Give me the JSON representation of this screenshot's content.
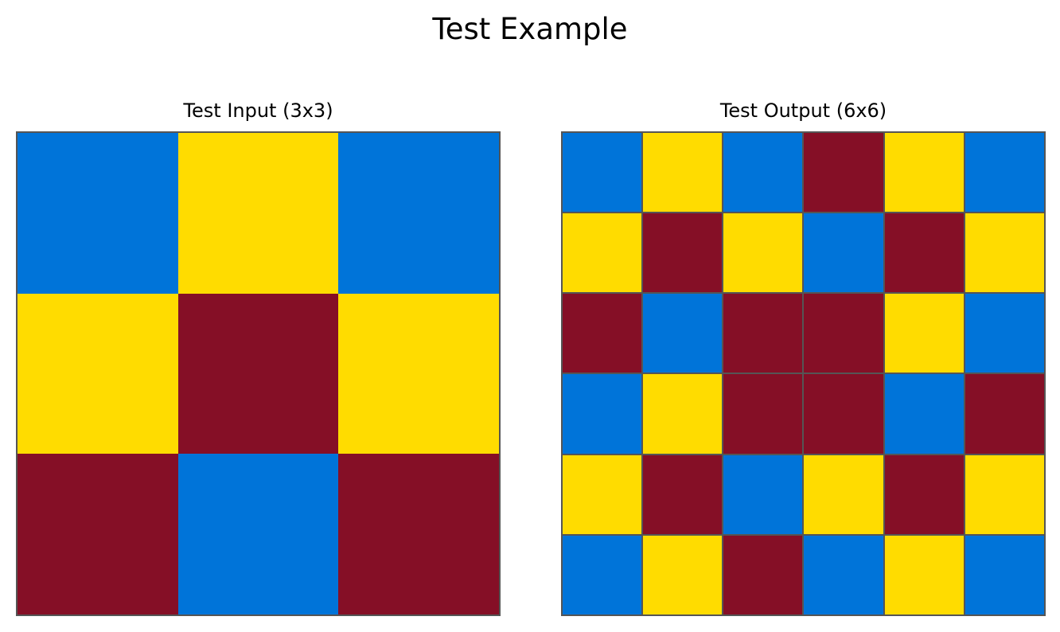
{
  "title": "Test Example",
  "palette": {
    "blue": "#0074D9",
    "yellow": "#FFDC00",
    "maroon": "#850F26"
  },
  "input": {
    "label": "Test Input (3x3)",
    "grid": [
      [
        "blue",
        "yellow",
        "blue"
      ],
      [
        "yellow",
        "maroon",
        "yellow"
      ],
      [
        "maroon",
        "blue",
        "maroon"
      ]
    ]
  },
  "output": {
    "label": "Test Output (6x6)",
    "grid": [
      [
        "blue",
        "yellow",
        "blue",
        "maroon",
        "yellow",
        "blue"
      ],
      [
        "yellow",
        "maroon",
        "yellow",
        "blue",
        "maroon",
        "yellow"
      ],
      [
        "maroon",
        "blue",
        "maroon",
        "maroon",
        "yellow",
        "blue"
      ],
      [
        "blue",
        "yellow",
        "maroon",
        "maroon",
        "blue",
        "maroon"
      ],
      [
        "yellow",
        "maroon",
        "blue",
        "yellow",
        "maroon",
        "yellow"
      ],
      [
        "blue",
        "yellow",
        "maroon",
        "blue",
        "yellow",
        "blue"
      ]
    ]
  }
}
